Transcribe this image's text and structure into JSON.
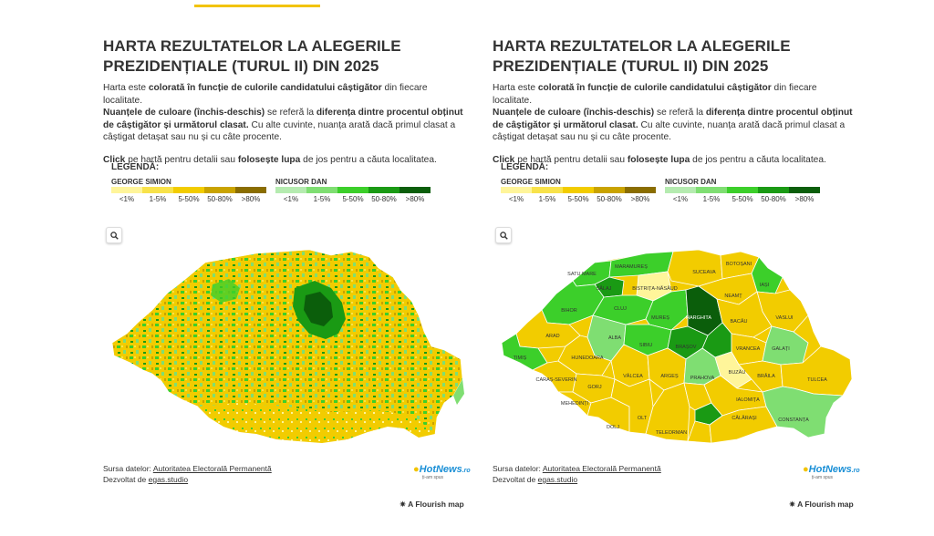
{
  "title": "HARTA REZULTATELOR LA ALEGERILE PREZIDENȚIALE (TURUL II) DIN 2025",
  "desc": {
    "p1_a": "Harta este ",
    "p1_b": "colorată în funcție de culorile candidatului câștigător",
    "p1_c": " din fiecare localitate.",
    "p2_a": "Nuanțele de culoare (închis-deschis)",
    "p2_b": " se referă la ",
    "p2_c": "diferența dintre procentul obținut de câștigător și următorul clasat.",
    "p2_d": " Cu alte cuvinte, nuanța arată dacă primul clasat a câștigat detașat sau nu și cu câte procente.",
    "click_a": "Click",
    "click_b": " pe hartă pentru detalii sau ",
    "click_c": "folosește lupa",
    "click_d": " de jos pentru a căuta localitatea."
  },
  "legend": {
    "title": "LEGENDĂ:",
    "simion": {
      "name": "GEORGE SIMION",
      "ticks": [
        "<1%",
        "1-5%",
        "5-50%",
        "50-80%",
        ">80%"
      ],
      "colors": [
        "#fff59a",
        "#f8e24a",
        "#f2cc00",
        "#c9a300",
        "#8a6d00"
      ]
    },
    "dan": {
      "name": "NICUSOR DAN",
      "ticks": [
        "<1%",
        "1-5%",
        "5-50%",
        "50-80%",
        ">80%"
      ],
      "colors": [
        "#b5ebb0",
        "#7fde72",
        "#3ccf2a",
        "#1a9a14",
        "#0b5e0b"
      ]
    }
  },
  "source": {
    "label": "Sursa datelor: ",
    "link": "Autoritatea Electorală Permanentă",
    "dev_label": "Dezvoltat de ",
    "dev_link": "egas.studio"
  },
  "brand": "HotNews",
  "brand_tld": ".ro",
  "brand_tagline": "ți-am spus",
  "flourish": "A Flourish map",
  "counties": [
    "SATU MARE",
    "MARAMUREȘ",
    "BOTOȘANI",
    "SĂLAJ",
    "BISTRIȚA-NĂSĂUD",
    "SUCEAVA",
    "IAȘI",
    "BIHOR",
    "CLUJ",
    "NEAMȚ",
    "MUREȘ",
    "HARGHITA",
    "ARAD",
    "ALBA",
    "BACĂU",
    "VASLUI",
    "TIMIȘ",
    "HUNEDOARA",
    "SIBIU",
    "BRAȘOV",
    "VRANCEA",
    "GALAȚI",
    "CARAȘ-SEVERIN",
    "VÂLCEA",
    "ARGEȘ",
    "PRAHOVA",
    "BUZĂU",
    "BRĂILA",
    "TULCEA",
    "GORJ",
    "IALOMIȚA",
    "MEHEDINȚI",
    "DOLJ",
    "OLT",
    "TELEORMAN",
    "CĂLĂRAȘI",
    "CONSTANȚA"
  ]
}
